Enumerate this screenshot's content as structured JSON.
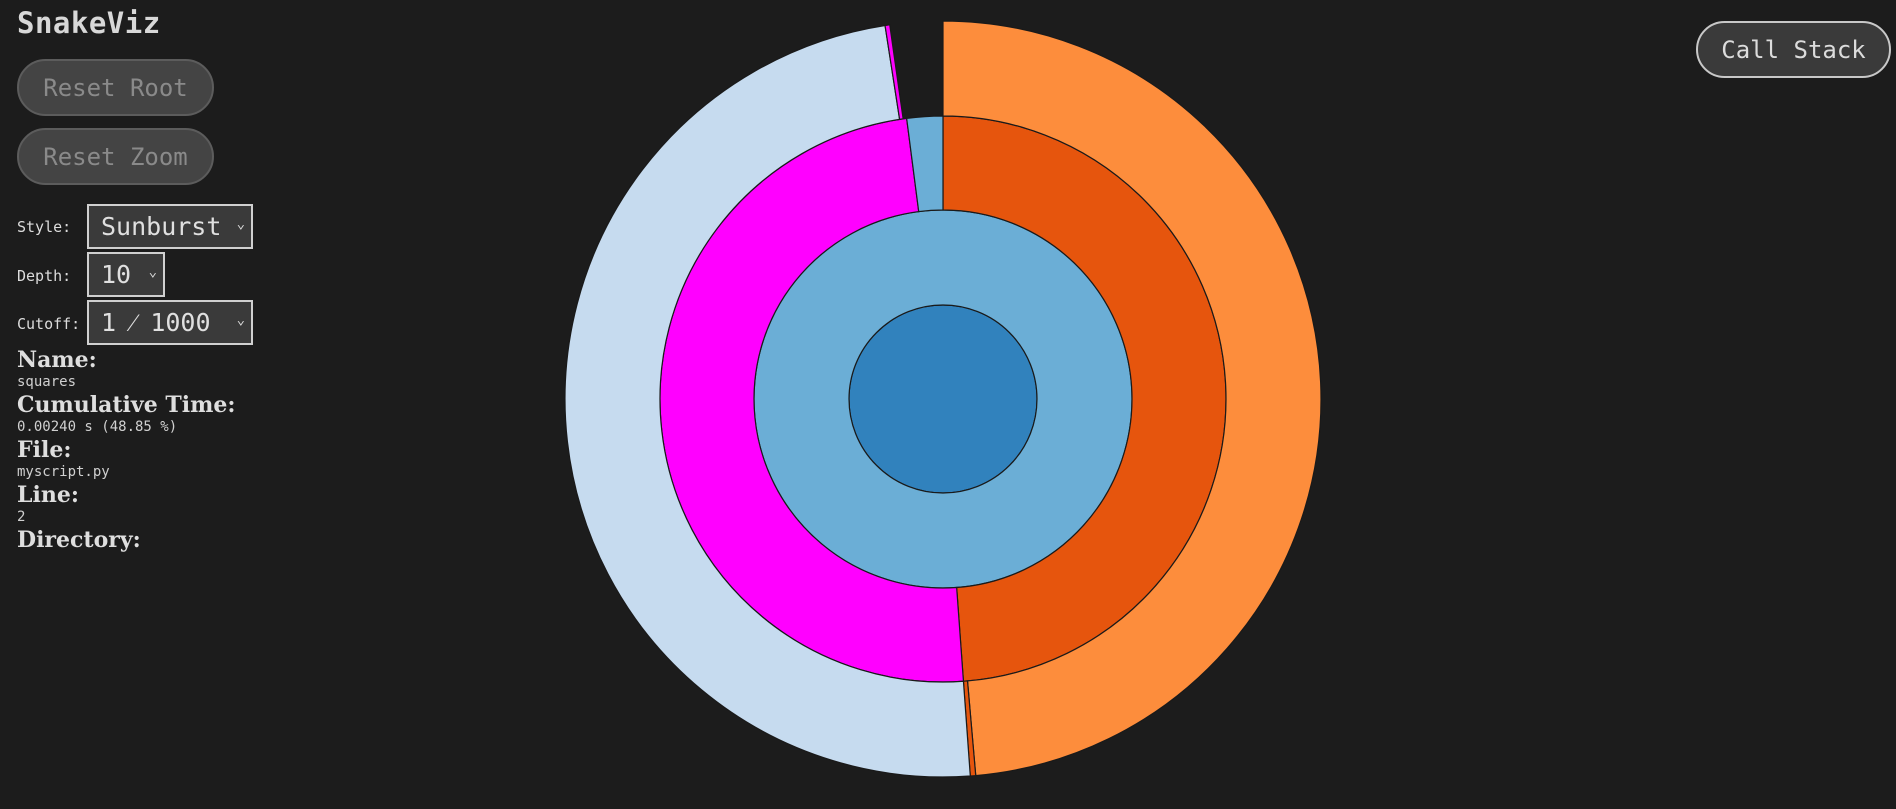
{
  "app": {
    "title": "SnakeViz"
  },
  "buttons": {
    "reset_root": "Reset Root",
    "reset_zoom": "Reset Zoom",
    "call_stack": "Call Stack"
  },
  "controls": {
    "style_label": "Style:",
    "style_value": "Sunburst",
    "depth_label": "Depth:",
    "depth_value": "10",
    "cutoff_label": "Cutoff:",
    "cutoff_value": "1 ⁄ 1000"
  },
  "info": {
    "name_label": "Name:",
    "name_value": "squares",
    "cumtime_label": "Cumulative Time:",
    "cumtime_value": "0.00240 s (48.85 %)",
    "file_label": "File:",
    "file_value": "myscript.py",
    "line_label": "Line:",
    "line_value": "2",
    "directory_label": "Directory:",
    "directory_value": ""
  },
  "chart_data": {
    "type": "sunburst",
    "unit": "fraction of total time",
    "rings": [
      {
        "depth": 0,
        "segments": [
          {
            "start": 0.0,
            "end": 1.0,
            "color": "#3182bd"
          }
        ]
      },
      {
        "depth": 1,
        "segments": [
          {
            "start": 0.0,
            "end": 1.0,
            "color": "#6baed6"
          }
        ]
      },
      {
        "depth": 2,
        "segments": [
          {
            "start": 0.0,
            "end": 0.4885,
            "color": "#e6550d"
          },
          {
            "start": 0.4885,
            "end": 0.9795,
            "color": "#ff00ff"
          },
          {
            "start": 0.9795,
            "end": 1.0,
            "color": "#6baed6"
          }
        ]
      },
      {
        "depth": 3,
        "segments": [
          {
            "start": 0.0,
            "end": 0.4862,
            "color": "#fd8d3c"
          },
          {
            "start": 0.4862,
            "end": 0.4885,
            "color": "#e6550d"
          },
          {
            "start": 0.4885,
            "end": 0.9755,
            "color": "#c6dbef"
          },
          {
            "start": 0.9755,
            "end": 0.9775,
            "color": "#ff00ff"
          }
        ]
      }
    ]
  }
}
